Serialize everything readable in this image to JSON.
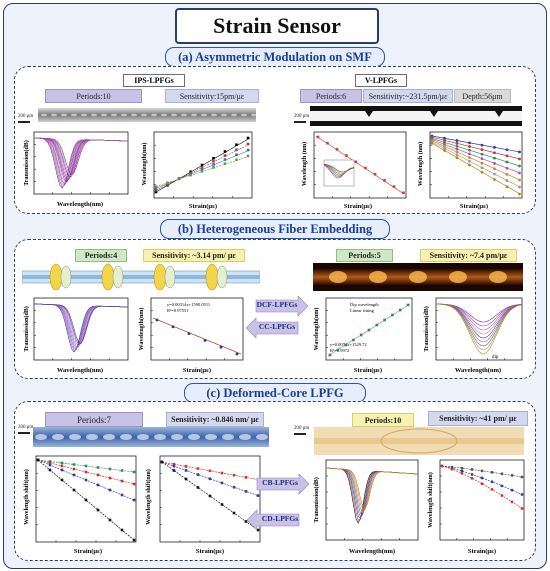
{
  "title": "Strain Sensor",
  "sections": {
    "a": {
      "heading": "(a) Asymmetric Modulation on SMF",
      "left": {
        "tag": "IPS-LPFGs",
        "periods": "Periods:10",
        "sensitivity": "Sensitivity:15pm/με",
        "scale": "200 μm",
        "chart1": {
          "xlabel": "Wavelength(nm)",
          "ylabel": "Transmission(dB)"
        },
        "chart2": {
          "xlabel": "Strain(με)",
          "ylabel": "Wavelength(nm)"
        }
      },
      "right": {
        "tag": "V-LPFGs",
        "periods": "Periods:6",
        "sensitivity": "Sensitivity:~231.5pm/με",
        "depth": "Depth:56μm",
        "scale": "200 μm",
        "chart1": {
          "xlabel": "Strain(με)",
          "ylabel": "Wavelength (nm)"
        },
        "chart2": {
          "xlabel": "Strain(με)",
          "ylabel": "Wavelength (nm)"
        }
      }
    },
    "b": {
      "heading": "(b) Heterogeneous Fiber Embedding",
      "left": {
        "periods": "Periods:4",
        "sensitivity": "Sensitivity: ~3.14 pm/ με",
        "chart1": {
          "xlabel": "Wavelength(nm)",
          "ylabel": "Transmission(dB)"
        },
        "chart2": {
          "xlabel": "Strain(με)",
          "ylabel": "Wavelength(nm)",
          "fit": "y=0.00314x+1590.0511",
          "r2": "R²=0.97551"
        }
      },
      "center": {
        "top": "DCF-LPFGs",
        "bottom": "CC-LPFGs"
      },
      "right": {
        "periods": "Periods:5",
        "sensitivity": "Sensitivity: ~7.4 pm/με",
        "chart1": {
          "xlabel": "Strain(με)",
          "ylabel": "Wavelength(nm)",
          "legend": [
            "Dip wavelength",
            "Linear fitting"
          ],
          "fit": "y=0.0074x+1529.72",
          "r2": "R²=0.9972"
        },
        "chart2": {
          "xlabel": "Wavelength(nm)",
          "ylabel": "Transmission(dB)",
          "dip": "dip"
        }
      }
    },
    "c": {
      "heading": "(c) Deformed-Core LPFG",
      "left": {
        "periods": "Periods:7",
        "sensitivity": "Sensitivity: ~0.846 nm/ με",
        "scale": "200 μm",
        "chart1": {
          "xlabel": "Strain(με)",
          "ylabel": "Wavelength shift(nm)"
        },
        "chart2": {
          "xlabel": "Strain(με)",
          "ylabel": "Wavelength shift(nm)"
        }
      },
      "center": {
        "top": "CB-LPFGs",
        "bottom": "CD-LPFGs"
      },
      "right": {
        "periods": "Periods:10",
        "sensitivity": "Sensitivity: ~41 pm/ με",
        "scale": "200 μm",
        "chart1": {
          "xlabel": "Wavelength(nm)",
          "ylabel": "Transmission(dB)"
        },
        "chart2": {
          "xlabel": "Strain(με)",
          "ylabel": "Wavelength shift(nm)"
        }
      }
    }
  },
  "colors": {
    "frame": "#2e3b6e",
    "heading": "#1b3e95",
    "purple": "#c9c2e6",
    "green": "#cfe8c6",
    "yellow": "#f7f2b0"
  }
}
